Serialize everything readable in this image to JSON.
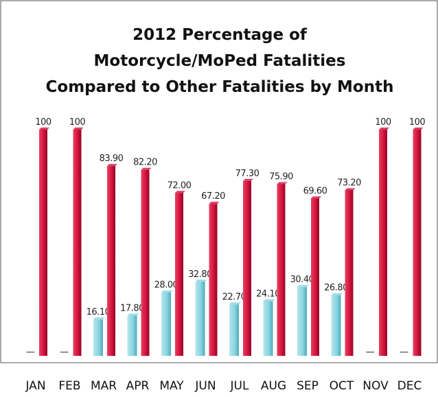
{
  "chart_data": {
    "type": "bar",
    "title": [
      "2012 Percentage of",
      "Motorcycle/MoPed Fatalities",
      "Compared to Other Fatalities by Month"
    ],
    "categories": [
      "JAN",
      "FEB",
      "MAR",
      "APR",
      "MAY",
      "JUN",
      "JUL",
      "AUG",
      "SEP",
      "OCT",
      "NOV",
      "DEC"
    ],
    "series": [
      {
        "color": "#86d3df",
        "values": [
          0,
          0,
          16.1,
          17.8,
          28,
          32.8,
          22.7,
          24.1,
          30.4,
          26.8,
          0,
          0
        ],
        "value_labels": [
          "—",
          "—",
          "16.10",
          "17.80",
          "28.00",
          "32.80",
          "22.70",
          "24.10",
          "30.40",
          "26.80",
          "—",
          "—"
        ]
      },
      {
        "color": "#d2103c",
        "values": [
          100,
          100,
          83.9,
          82.2,
          72,
          67.2,
          77.3,
          75.9,
          69.6,
          73.2,
          100,
          100
        ],
        "value_labels": [
          "100",
          "100",
          "83.90",
          "82.20",
          "72.00",
          "67.20",
          "77.30",
          "75.90",
          "69.60",
          "73.20",
          "100",
          "100"
        ]
      }
    ]
  }
}
